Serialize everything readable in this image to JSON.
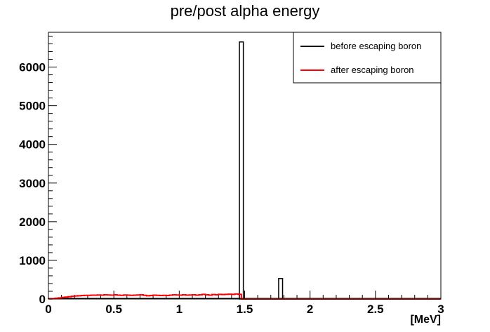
{
  "chart_data": {
    "type": "bar",
    "title": "pre/post alpha energy",
    "xlabel": "[MeV]",
    "ylabel": "",
    "xlim": [
      0,
      3
    ],
    "ylim": [
      0,
      6900
    ],
    "x_ticks": [
      0,
      0.5,
      1,
      1.5,
      2,
      2.5,
      3
    ],
    "x_tick_labels": [
      "0",
      "0.5",
      "1",
      "1.5",
      "2",
      "2.5",
      "3"
    ],
    "y_ticks": [
      0,
      1000,
      2000,
      3000,
      4000,
      5000,
      6000
    ],
    "y_tick_labels": [
      "0",
      "1000",
      "2000",
      "3000",
      "4000",
      "5000",
      "6000"
    ],
    "grid": false,
    "legend_position": "top-right",
    "series": [
      {
        "name": "before escaping boron",
        "color": "#000000",
        "bins": [
          {
            "x0": 1.46,
            "x1": 1.49,
            "y": 6650
          },
          {
            "x0": 1.76,
            "x1": 1.79,
            "y": 530
          }
        ]
      },
      {
        "name": "after escaping boron",
        "color": "#ff0000",
        "bin_edges": [
          0,
          0.025,
          0.05,
          0.075,
          0.1,
          0.125,
          0.15,
          0.175,
          0.2,
          0.225,
          0.25,
          0.275,
          0.3,
          0.325,
          0.35,
          0.375,
          0.4,
          0.425,
          0.45,
          0.475,
          0.5,
          0.525,
          0.55,
          0.575,
          0.6,
          0.625,
          0.65,
          0.675,
          0.7,
          0.725,
          0.75,
          0.775,
          0.8,
          0.825,
          0.85,
          0.875,
          0.9,
          0.925,
          0.95,
          0.975,
          1.0,
          1.025,
          1.05,
          1.075,
          1.1,
          1.125,
          1.15,
          1.175,
          1.2,
          1.225,
          1.25,
          1.275,
          1.3,
          1.325,
          1.35,
          1.375,
          1.4,
          1.425,
          1.45,
          1.475,
          1.5
        ],
        "values": [
          5,
          10,
          20,
          30,
          40,
          50,
          60,
          70,
          80,
          85,
          90,
          95,
          95,
          100,
          100,
          105,
          100,
          110,
          105,
          100,
          110,
          100,
          95,
          105,
          100,
          95,
          100,
          105,
          110,
          95,
          85,
          90,
          100,
          95,
          90,
          95,
          90,
          100,
          110,
          105,
          100,
          110,
          100,
          105,
          110,
          100,
          110,
          120,
          110,
          100,
          115,
          110,
          120,
          115,
          120,
          125,
          120,
          130,
          120,
          0
        ]
      }
    ]
  }
}
